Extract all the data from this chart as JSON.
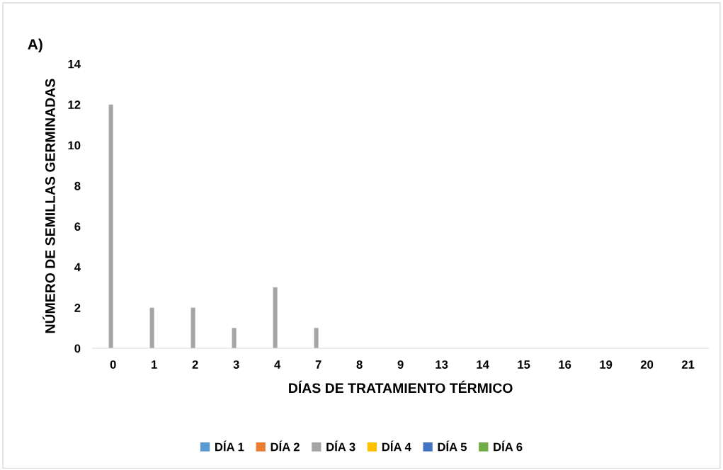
{
  "chart_data": {
    "type": "bar",
    "title": "A)",
    "xlabel": "DÍAS DE TRATAMIENTO TÉRMICO",
    "ylabel": "NÚMERO DE SEMILLAS GERMINADAS",
    "categories": [
      "0",
      "1",
      "2",
      "3",
      "4",
      "7",
      "8",
      "9",
      "13",
      "14",
      "15",
      "16",
      "19",
      "20",
      "21"
    ],
    "series": [
      {
        "name": "DÍA 1",
        "color": "#5b9bd5",
        "values": [
          0,
          0,
          0,
          0,
          0,
          0,
          0,
          0,
          0,
          0,
          0,
          0,
          0,
          0,
          0
        ]
      },
      {
        "name": "DÍA 2",
        "color": "#ed7d31",
        "values": [
          0,
          0,
          0,
          0,
          0,
          0,
          0,
          0,
          0,
          0,
          0,
          0,
          0,
          0,
          0
        ]
      },
      {
        "name": "DÍA 3",
        "color": "#a5a5a5",
        "values": [
          12,
          2,
          2,
          1,
          3,
          1,
          0,
          0,
          0,
          0,
          0,
          0,
          0,
          0,
          0
        ]
      },
      {
        "name": "DÍA 4",
        "color": "#ffc000",
        "values": [
          0,
          0,
          0,
          0,
          0,
          0,
          0,
          0,
          0,
          0,
          0,
          0,
          0,
          0,
          0
        ]
      },
      {
        "name": "DÍA 5",
        "color": "#4472c4",
        "values": [
          0,
          0,
          0,
          0,
          0,
          0,
          0,
          0,
          0,
          0,
          0,
          0,
          0,
          0,
          0
        ]
      },
      {
        "name": "DÍA 6",
        "color": "#70ad47",
        "values": [
          0,
          0,
          0,
          0,
          0,
          0,
          0,
          0,
          0,
          0,
          0,
          0,
          0,
          0,
          0
        ]
      }
    ],
    "ylim": [
      0,
      14
    ],
    "yticks": [
      0,
      2,
      4,
      6,
      8,
      10,
      12,
      14
    ],
    "grid": false,
    "legend": "bottom"
  }
}
